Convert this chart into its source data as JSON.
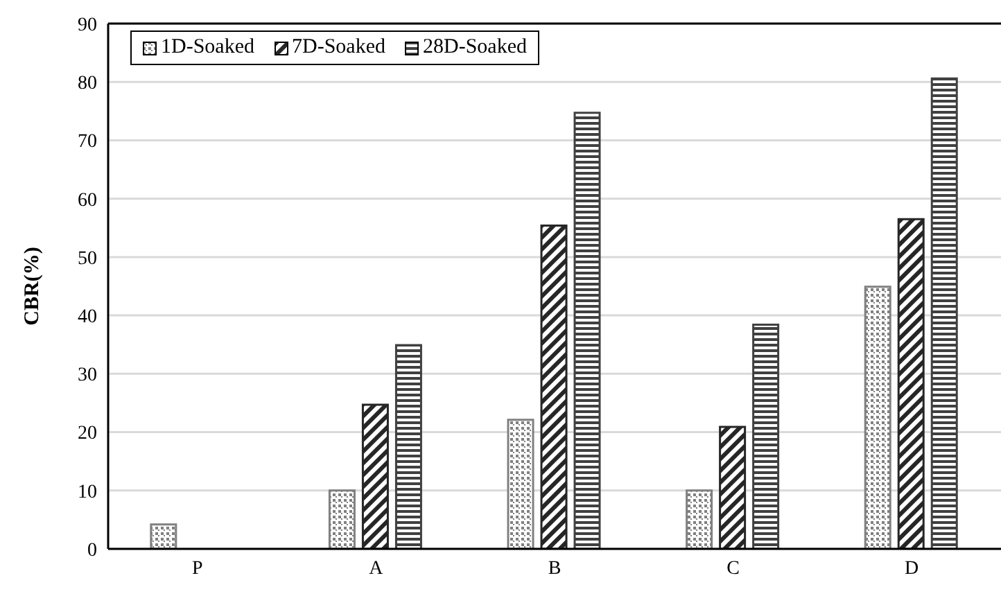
{
  "chart_data": {
    "type": "bar",
    "ylabel": "CBR(%)",
    "categories": [
      "P",
      "A",
      "B",
      "C",
      "D"
    ],
    "series": [
      {
        "name": "1D-Soaked",
        "color": "#808080",
        "values": [
          4.2,
          10.0,
          22.1,
          10.0,
          44.9
        ]
      },
      {
        "name": "7D-Soaked",
        "color": "#262626",
        "values": [
          null,
          24.7,
          55.4,
          20.9,
          56.5
        ]
      },
      {
        "name": "28D-Soaked",
        "color": "#404040",
        "values": [
          null,
          34.9,
          74.7,
          38.4,
          80.6
        ]
      }
    ],
    "ylim": [
      0,
      90
    ],
    "yticks": [
      0,
      10,
      20,
      30,
      40,
      50,
      60,
      70,
      80,
      90
    ],
    "grid": "y",
    "legend": "top left"
  }
}
